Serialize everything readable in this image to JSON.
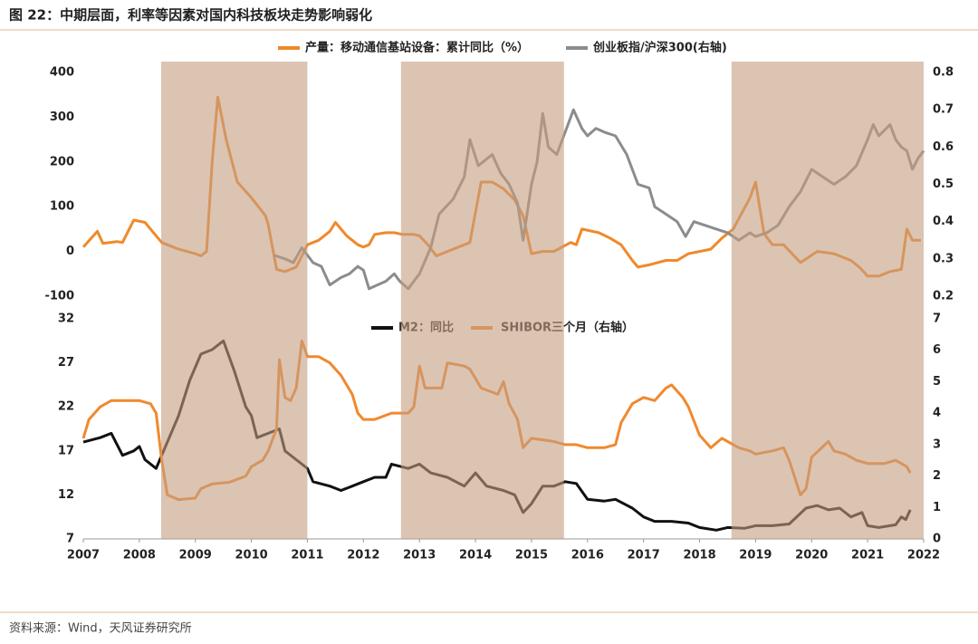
{
  "title": "图 22：中期层面，利率等因素对国内科技板块走势影响弱化",
  "source": "资料来源：Wind，天风证券研究所",
  "chart_data": [
    {
      "type": "line",
      "xlim": [
        2007,
        2022
      ],
      "ylim": [
        -100,
        400
      ],
      "yticks": [
        -100,
        0,
        100,
        200,
        300,
        400
      ],
      "y2lim": [
        0.2,
        0.8
      ],
      "y2ticks": [
        0.2,
        0.3,
        0.4,
        0.5,
        0.6,
        0.7,
        0.8
      ],
      "shaded_periods": [
        [
          2008.39,
          2011.0
        ],
        [
          2012.67,
          2015.58
        ],
        [
          2018.57,
          2022.0
        ]
      ],
      "series": [
        {
          "name": "产量：移动通信基站设备：累计同比（%）",
          "color": "#f0892a",
          "x": [
            2007.0,
            2007.25,
            2007.35,
            2007.6,
            2007.7,
            2007.9,
            2008.1,
            2008.2,
            2008.4,
            2008.5,
            2008.7,
            2009.0,
            2009.1,
            2009.2,
            2009.3,
            2009.4,
            2009.55,
            2009.75,
            2010.0,
            2010.25,
            2010.3,
            2010.45,
            2010.6,
            2010.8,
            2011.0,
            2011.2,
            2011.4,
            2011.5,
            2011.7,
            2011.9,
            2012.0,
            2012.1,
            2012.2,
            2012.4,
            2012.55,
            2012.7,
            2012.9,
            2013.0,
            2013.15,
            2013.3,
            2013.5,
            2013.7,
            2013.9,
            2014.1,
            2014.3,
            2014.5,
            2014.7,
            2014.85,
            2015.0,
            2015.2,
            2015.4,
            2015.7,
            2015.8,
            2015.9,
            2016.2,
            2016.4,
            2016.6,
            2016.8,
            2016.9,
            2017.1,
            2017.4,
            2017.6,
            2017.8,
            2018.0,
            2018.2,
            2018.4,
            2018.6,
            2018.9,
            2019.0,
            2019.15,
            2019.3,
            2019.5,
            2019.8,
            2020.1,
            2020.4,
            2020.7,
            2020.85,
            2021.0,
            2021.2,
            2021.4,
            2021.6,
            2021.7,
            2021.8,
            2021.95
          ],
          "values": [
            10,
            45,
            18,
            22,
            20,
            70,
            65,
            50,
            20,
            15,
            5,
            -5,
            -10,
            0,
            200,
            345,
            250,
            155,
            120,
            80,
            60,
            -40,
            -45,
            -35,
            15,
            25,
            45,
            65,
            35,
            15,
            10,
            15,
            38,
            42,
            42,
            38,
            38,
            35,
            15,
            -10,
            0,
            10,
            20,
            155,
            155,
            140,
            115,
            80,
            -5,
            0,
            0,
            20,
            15,
            50,
            42,
            30,
            15,
            -20,
            -35,
            -30,
            -20,
            -20,
            -5,
            0,
            5,
            30,
            50,
            120,
            155,
            40,
            15,
            15,
            -25,
            0,
            -5,
            -20,
            -35,
            -55,
            -55,
            -45,
            -40,
            50,
            25,
            25
          ]
        },
        {
          "name": "创业板指/沪深300(右轴)",
          "color": "#8c8c8c",
          "axis": "y2",
          "x": [
            2010.4,
            2010.6,
            2010.75,
            2010.9,
            2011.1,
            2011.25,
            2011.4,
            2011.6,
            2011.75,
            2011.9,
            2012.0,
            2012.1,
            2012.25,
            2012.4,
            2012.55,
            2012.65,
            2012.8,
            2013.0,
            2013.2,
            2013.35,
            2013.6,
            2013.8,
            2013.9,
            2014.05,
            2014.3,
            2014.45,
            2014.6,
            2014.75,
            2014.85,
            2015.0,
            2015.1,
            2015.2,
            2015.3,
            2015.45,
            2015.6,
            2015.75,
            2015.9,
            2016.0,
            2016.15,
            2016.3,
            2016.5,
            2016.7,
            2016.9,
            2017.1,
            2017.2,
            2017.4,
            2017.6,
            2017.75,
            2017.9,
            2018.1,
            2018.3,
            2018.5,
            2018.7,
            2018.9,
            2019.0,
            2019.2,
            2019.4,
            2019.6,
            2019.8,
            2020.0,
            2020.2,
            2020.4,
            2020.6,
            2020.8,
            2021.0,
            2021.1,
            2021.2,
            2021.4,
            2021.5,
            2021.6,
            2021.7,
            2021.8,
            2021.9,
            2022.0
          ],
          "values": [
            0.31,
            0.3,
            0.29,
            0.33,
            0.29,
            0.28,
            0.23,
            0.25,
            0.26,
            0.28,
            0.27,
            0.22,
            0.23,
            0.24,
            0.26,
            0.24,
            0.22,
            0.26,
            0.33,
            0.42,
            0.46,
            0.52,
            0.62,
            0.55,
            0.58,
            0.53,
            0.5,
            0.45,
            0.35,
            0.5,
            0.56,
            0.69,
            0.6,
            0.58,
            0.64,
            0.7,
            0.65,
            0.63,
            0.65,
            0.64,
            0.63,
            0.58,
            0.5,
            0.49,
            0.44,
            0.42,
            0.4,
            0.36,
            0.4,
            0.39,
            0.38,
            0.37,
            0.35,
            0.37,
            0.36,
            0.37,
            0.39,
            0.44,
            0.48,
            0.54,
            0.52,
            0.5,
            0.52,
            0.55,
            0.62,
            0.66,
            0.63,
            0.66,
            0.62,
            0.6,
            0.59,
            0.54,
            0.57,
            0.59
          ]
        }
      ]
    },
    {
      "type": "line",
      "xlim": [
        2007,
        2022
      ],
      "xticks": [
        2007,
        2008,
        2009,
        2010,
        2011,
        2012,
        2013,
        2014,
        2015,
        2016,
        2017,
        2018,
        2019,
        2020,
        2021,
        2022
      ],
      "ylim": [
        7,
        32
      ],
      "yticks": [
        7,
        12,
        17,
        22,
        27,
        32
      ],
      "y2lim": [
        0,
        7
      ],
      "y2ticks": [
        0,
        1,
        2,
        3,
        4,
        5,
        6,
        7
      ],
      "series": [
        {
          "name": "M2：同比",
          "color": "#111111",
          "x": [
            2007.0,
            2007.3,
            2007.5,
            2007.7,
            2007.9,
            2008.0,
            2008.1,
            2008.3,
            2008.5,
            2008.7,
            2008.9,
            2009.1,
            2009.3,
            2009.5,
            2009.7,
            2009.9,
            2010.0,
            2010.1,
            2010.3,
            2010.5,
            2010.6,
            2010.8,
            2011.0,
            2011.1,
            2011.4,
            2011.6,
            2011.8,
            2012.0,
            2012.2,
            2012.4,
            2012.5,
            2012.8,
            2013.0,
            2013.2,
            2013.5,
            2013.8,
            2014.0,
            2014.2,
            2014.5,
            2014.7,
            2014.85,
            2015.0,
            2015.2,
            2015.4,
            2015.6,
            2015.8,
            2016.0,
            2016.3,
            2016.5,
            2016.8,
            2017.0,
            2017.2,
            2017.5,
            2017.8,
            2018.0,
            2018.3,
            2018.5,
            2018.8,
            2019.0,
            2019.3,
            2019.6,
            2019.9,
            2020.1,
            2020.3,
            2020.5,
            2020.7,
            2020.9,
            2021.0,
            2021.2,
            2021.4,
            2021.5,
            2021.6,
            2021.68,
            2021.76
          ],
          "values": [
            18,
            18.5,
            19,
            16.5,
            17,
            17.5,
            16,
            15,
            18,
            21,
            25,
            28,
            28.5,
            29.5,
            26,
            22,
            21,
            18.5,
            19,
            19.5,
            17,
            16,
            15,
            13.5,
            13,
            12.5,
            13,
            13.5,
            14,
            14,
            15.5,
            15,
            15.5,
            14.5,
            14,
            13,
            14.5,
            13,
            12.5,
            12,
            10,
            11,
            13,
            13,
            13.5,
            13.3,
            11.5,
            11.3,
            11.5,
            10.5,
            9.5,
            9,
            9,
            8.8,
            8.3,
            8,
            8.3,
            8.2,
            8.5,
            8.5,
            8.7,
            10.5,
            10.8,
            10.3,
            10.5,
            9.5,
            10,
            8.5,
            8.3,
            8.5,
            8.6,
            9.5,
            9.2,
            10.3
          ]
        },
        {
          "name": "SHIBOR三个月（右轴）",
          "color": "#f0892e",
          "axis": "y2",
          "x": [
            2007.0,
            2007.1,
            2007.3,
            2007.5,
            2007.8,
            2008.0,
            2008.2,
            2008.3,
            2008.4,
            2008.5,
            2008.7,
            2009.0,
            2009.1,
            2009.3,
            2009.6,
            2009.9,
            2010.0,
            2010.2,
            2010.3,
            2010.45,
            2010.5,
            2010.6,
            2010.7,
            2010.8,
            2010.9,
            2011.0,
            2011.2,
            2011.4,
            2011.6,
            2011.8,
            2011.9,
            2012.0,
            2012.2,
            2012.5,
            2012.8,
            2012.9,
            2013.0,
            2013.1,
            2013.4,
            2013.5,
            2013.8,
            2013.9,
            2014.1,
            2014.4,
            2014.5,
            2014.6,
            2014.75,
            2014.85,
            2015.0,
            2015.4,
            2015.6,
            2015.8,
            2016.0,
            2016.3,
            2016.5,
            2016.6,
            2016.8,
            2017.0,
            2017.2,
            2017.4,
            2017.5,
            2017.7,
            2017.8,
            2018.0,
            2018.2,
            2018.4,
            2018.5,
            2018.7,
            2018.9,
            2019.0,
            2019.3,
            2019.5,
            2019.6,
            2019.8,
            2019.9,
            2020.0,
            2020.3,
            2020.4,
            2020.6,
            2020.8,
            2021.0,
            2021.3,
            2021.5,
            2021.7,
            2021.76
          ],
          "values": [
            3.2,
            3.8,
            4.2,
            4.4,
            4.4,
            4.4,
            4.3,
            4.0,
            2.5,
            1.4,
            1.25,
            1.3,
            1.6,
            1.75,
            1.8,
            2.0,
            2.3,
            2.5,
            2.8,
            3.5,
            5.7,
            4.5,
            4.4,
            4.8,
            6.3,
            5.8,
            5.8,
            5.6,
            5.2,
            4.6,
            4.0,
            3.8,
            3.8,
            4.0,
            4.0,
            4.2,
            5.5,
            4.8,
            4.8,
            5.6,
            5.5,
            5.4,
            4.8,
            4.6,
            5.0,
            4.3,
            3.8,
            2.9,
            3.2,
            3.1,
            3.0,
            3.0,
            2.9,
            2.9,
            3.0,
            3.7,
            4.3,
            4.5,
            4.4,
            4.8,
            4.9,
            4.5,
            4.2,
            3.3,
            2.9,
            3.2,
            3.1,
            2.9,
            2.8,
            2.7,
            2.8,
            2.9,
            2.5,
            1.4,
            1.6,
            2.6,
            3.1,
            2.8,
            2.7,
            2.5,
            2.4,
            2.4,
            2.5,
            2.3,
            2.1
          ]
        }
      ]
    }
  ]
}
